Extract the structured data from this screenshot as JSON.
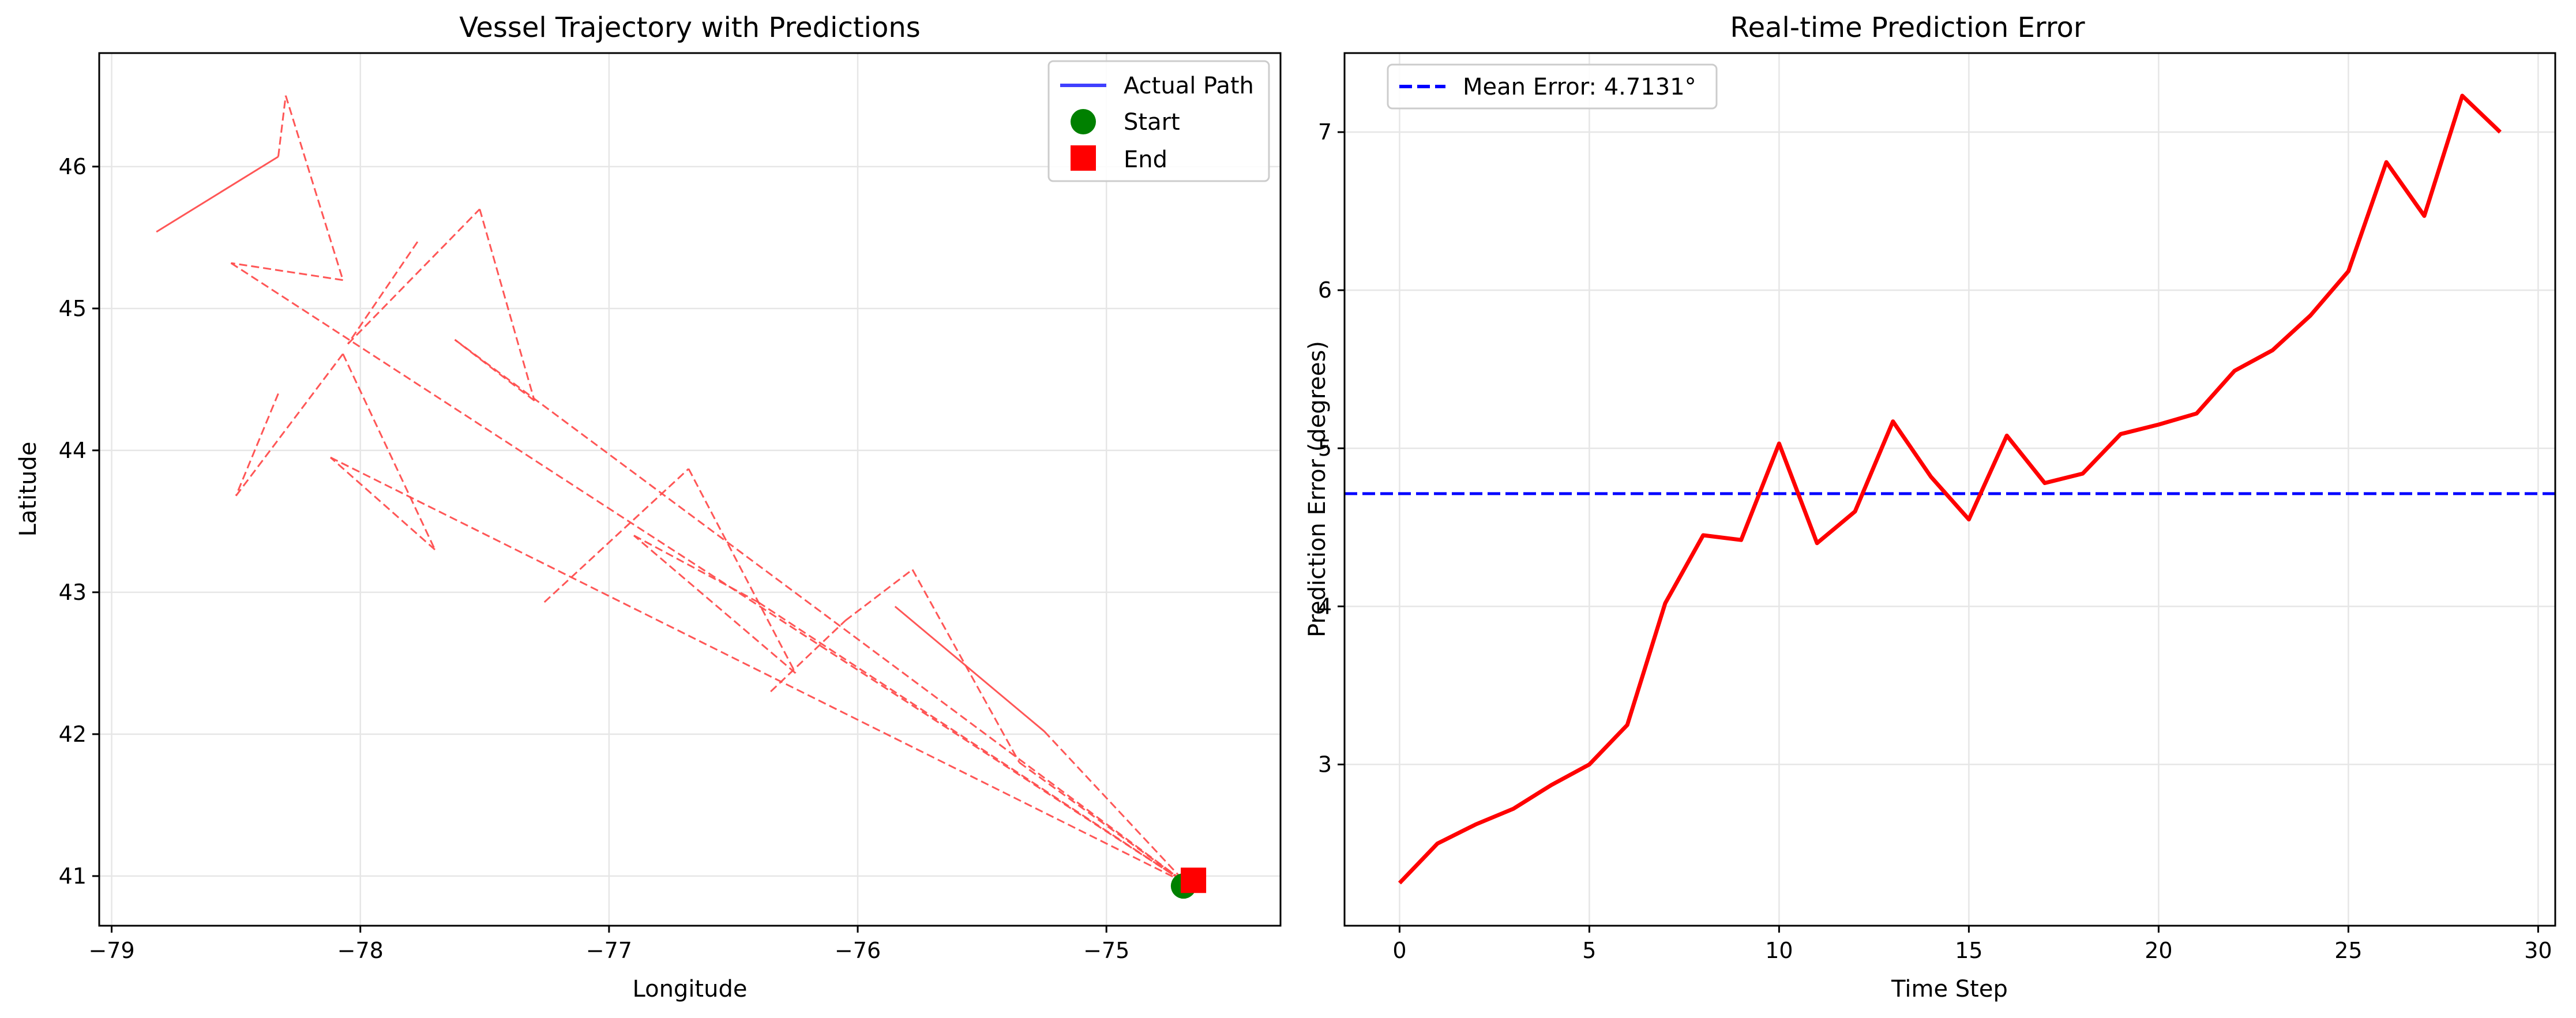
{
  "chart_data": [
    {
      "type": "line",
      "title": "Vessel Trajectory with Predictions",
      "xlabel": "Longitude",
      "ylabel": "Latitude",
      "xlim": [
        -79.05,
        -74.3
      ],
      "ylim": [
        40.65,
        46.8
      ],
      "xticks": [
        -79,
        -78,
        -77,
        -76,
        -75
      ],
      "yticks": [
        41,
        42,
        43,
        44,
        45,
        46
      ],
      "grid": true,
      "legend_position": "top-right",
      "legend": [
        {
          "label": "Actual Path",
          "color": "#4040ff",
          "kind": "line"
        },
        {
          "label": "Start",
          "color": "#008000",
          "kind": "circle"
        },
        {
          "label": "End",
          "color": "#ff0000",
          "kind": "square"
        }
      ],
      "actual_path": {
        "x": [
          -74.69,
          -74.66
        ],
        "y": [
          40.93,
          40.97
        ]
      },
      "start": {
        "x": -74.69,
        "y": 40.93
      },
      "end": {
        "x": -74.65,
        "y": 40.97
      },
      "prediction_color": "#ff4d4d",
      "prediction_segments": [
        {
          "x": [
            -78.82,
            -78.33
          ],
          "y": [
            45.54,
            46.07
          ],
          "style": "solid"
        },
        {
          "x": [
            -78.33,
            -78.3
          ],
          "y": [
            46.07,
            46.5
          ],
          "style": "dashed"
        },
        {
          "x": [
            -78.3,
            -78.07
          ],
          "y": [
            46.5,
            45.2
          ],
          "style": "dashed"
        },
        {
          "x": [
            -78.07,
            -78.52
          ],
          "y": [
            45.2,
            45.32
          ],
          "style": "dashed"
        },
        {
          "x": [
            -78.52,
            -74.68
          ],
          "y": [
            45.32,
            40.95
          ],
          "style": "dashed"
        },
        {
          "x": [
            -77.77,
            -78.05
          ],
          "y": [
            45.47,
            44.75
          ],
          "style": "dashed"
        },
        {
          "x": [
            -78.05,
            -77.52
          ],
          "y": [
            44.75,
            45.7
          ],
          "style": "dashed"
        },
        {
          "x": [
            -77.52,
            -77.3
          ],
          "y": [
            45.7,
            44.35
          ],
          "style": "dashed"
        },
        {
          "x": [
            -77.3,
            -77.62
          ],
          "y": [
            44.35,
            44.78
          ],
          "style": "dashed"
        },
        {
          "x": [
            -77.62,
            -74.68
          ],
          "y": [
            44.78,
            40.95
          ],
          "style": "dashed"
        },
        {
          "x": [
            -78.33,
            -78.5
          ],
          "y": [
            44.4,
            43.68
          ],
          "style": "dashed"
        },
        {
          "x": [
            -78.5,
            -78.07
          ],
          "y": [
            43.68,
            44.68
          ],
          "style": "dashed"
        },
        {
          "x": [
            -78.07,
            -77.7
          ],
          "y": [
            44.68,
            43.3
          ],
          "style": "dashed"
        },
        {
          "x": [
            -77.7,
            -78.12
          ],
          "y": [
            43.3,
            43.95
          ],
          "style": "dashed"
        },
        {
          "x": [
            -78.12,
            -74.68
          ],
          "y": [
            43.95,
            40.95
          ],
          "style": "dashed"
        },
        {
          "x": [
            -77.26,
            -76.68
          ],
          "y": [
            42.93,
            43.87
          ],
          "style": "dashed"
        },
        {
          "x": [
            -76.68,
            -76.25
          ],
          "y": [
            43.87,
            42.43
          ],
          "style": "dashed"
        },
        {
          "x": [
            -76.25,
            -76.9
          ],
          "y": [
            42.43,
            43.4
          ],
          "style": "dashed"
        },
        {
          "x": [
            -76.9,
            -76.4
          ],
          "y": [
            43.4,
            42.93
          ],
          "style": "dashed"
        },
        {
          "x": [
            -76.4,
            -74.68
          ],
          "y": [
            42.93,
            40.95
          ],
          "style": "dashed"
        },
        {
          "x": [
            -76.35,
            -76.05
          ],
          "y": [
            42.3,
            42.8
          ],
          "style": "dashed"
        },
        {
          "x": [
            -76.05,
            -75.78
          ],
          "y": [
            42.8,
            43.16
          ],
          "style": "dashed"
        },
        {
          "x": [
            -75.78,
            -75.35
          ],
          "y": [
            43.16,
            41.8
          ],
          "style": "dashed"
        },
        {
          "x": [
            -75.35,
            -74.68
          ],
          "y": [
            41.8,
            40.95
          ],
          "style": "dashed"
        },
        {
          "x": [
            -75.85,
            -75.25
          ],
          "y": [
            42.9,
            42.02
          ],
          "style": "solid"
        },
        {
          "x": [
            -75.25,
            -74.68
          ],
          "y": [
            42.02,
            40.95
          ],
          "style": "dashed"
        }
      ]
    },
    {
      "type": "line",
      "title": "Real-time Prediction Error",
      "xlabel": "Time Step",
      "ylabel": "Prediction Error (degrees)",
      "xlim": [
        -1.45,
        30.45
      ],
      "ylim": [
        1.98,
        7.5
      ],
      "xticks": [
        0,
        5,
        10,
        15,
        20,
        25,
        30
      ],
      "yticks": [
        3,
        4,
        5,
        6,
        7
      ],
      "grid": true,
      "legend_position": "top-left",
      "legend": [
        {
          "label": "Mean Error: 4.7131°",
          "color": "#0000ff",
          "kind": "dashed"
        }
      ],
      "mean_error": 4.7131,
      "series": [
        {
          "color": "#ff0000",
          "x": [
            0,
            1,
            2,
            3,
            4,
            5,
            6,
            7,
            8,
            9,
            10,
            11,
            12,
            13,
            14,
            15,
            16,
            17,
            18,
            19,
            20,
            21,
            22,
            23,
            24,
            25,
            26,
            27,
            28,
            29
          ],
          "values": [
            2.25,
            2.5,
            2.62,
            2.72,
            2.87,
            3.0,
            3.25,
            4.02,
            4.45,
            4.42,
            5.03,
            4.4,
            4.6,
            5.17,
            4.82,
            4.55,
            5.08,
            4.78,
            4.84,
            5.09,
            5.15,
            5.22,
            5.49,
            5.62,
            5.84,
            6.12,
            6.81,
            6.47,
            7.23,
            7.0
          ]
        }
      ]
    }
  ]
}
